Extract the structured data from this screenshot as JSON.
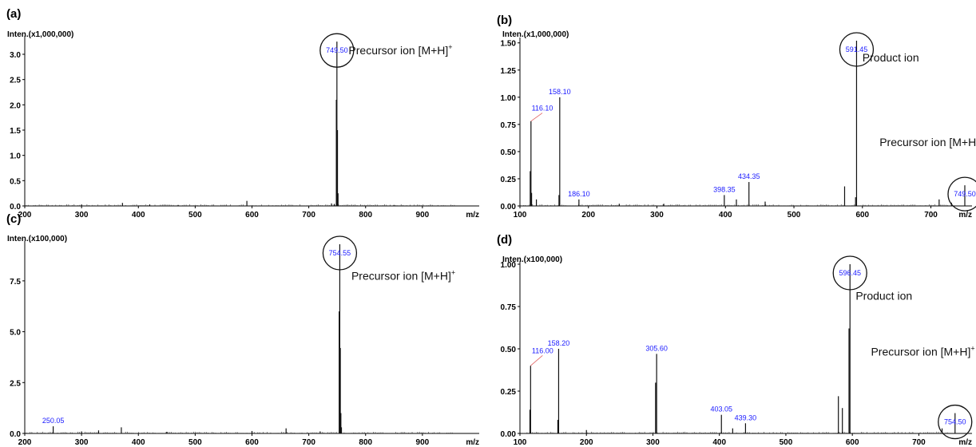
{
  "chart_data": [
    {
      "type": "spectrum",
      "panel": "(a)",
      "ylabel": "Inten.(x1,000,000)",
      "xlabel": "m/z",
      "xlim": [
        200,
        1000
      ],
      "ylim": [
        0,
        3.3
      ],
      "xticks": [
        200,
        300,
        400,
        500,
        600,
        700,
        800,
        900
      ],
      "yticks": [
        "0.0",
        "0.5",
        "1.0",
        "1.5",
        "2.0",
        "2.5",
        "3.0"
      ],
      "ytick_values": [
        0,
        0.5,
        1.0,
        1.5,
        2.0,
        2.5,
        3.0
      ],
      "peaks": [
        {
          "x": 749.5,
          "y": 3.25,
          "label": "749.50",
          "circle": true
        },
        {
          "x": 748.5,
          "y": 2.1
        },
        {
          "x": 750.5,
          "y": 1.5
        },
        {
          "x": 751.5,
          "y": 0.25
        },
        {
          "x": 740.0,
          "y": 0.05
        },
        {
          "x": 745.0,
          "y": 0.04
        },
        {
          "x": 591.0,
          "y": 0.1
        },
        {
          "x": 372.0,
          "y": 0.06
        },
        {
          "x": 300.0,
          "y": 0.03
        },
        {
          "x": 420.0,
          "y": 0.03
        },
        {
          "x": 470.0,
          "y": 0.02
        },
        {
          "x": 850.0,
          "y": 0.02
        }
      ],
      "annotations": [
        {
          "text": "Precursor ion [M+H]",
          "sup": "+",
          "x": 770,
          "y": 3.0
        }
      ]
    },
    {
      "type": "spectrum",
      "panel": "(b)",
      "ylabel": "Inten.(x1,000,000)",
      "xlabel": "m/z",
      "xlim": [
        100,
        760
      ],
      "ylim": [
        0,
        1.52
      ],
      "xticks": [
        100,
        200,
        300,
        400,
        500,
        600,
        700
      ],
      "yticks": [
        "0.00",
        "0.25",
        "0.50",
        "0.75",
        "1.00",
        "1.25",
        "1.50"
      ],
      "ytick_values": [
        0,
        0.25,
        0.5,
        0.75,
        1.0,
        1.25,
        1.5
      ],
      "peaks": [
        {
          "x": 591.45,
          "y": 1.52,
          "label": "591.45",
          "circle": true
        },
        {
          "x": 158.1,
          "y": 1.0,
          "label": "158.10"
        },
        {
          "x": 116.1,
          "y": 0.78,
          "label": "116.10",
          "label_x": 121,
          "label_y": 0.87,
          "leader": true
        },
        {
          "x": 434.35,
          "y": 0.22,
          "label": "434.35"
        },
        {
          "x": 398.35,
          "y": 0.1,
          "label": "398.35"
        },
        {
          "x": 186.1,
          "y": 0.06,
          "label": "186.10"
        },
        {
          "x": 749.5,
          "y": 0.19,
          "label": "749.50",
          "circle": true
        },
        {
          "x": 574.0,
          "y": 0.18
        },
        {
          "x": 115.0,
          "y": 0.32
        },
        {
          "x": 117.0,
          "y": 0.12
        },
        {
          "x": 157.0,
          "y": 0.1
        },
        {
          "x": 124.0,
          "y": 0.06
        },
        {
          "x": 416.0,
          "y": 0.06
        },
        {
          "x": 458.0,
          "y": 0.04
        },
        {
          "x": 712.0,
          "y": 0.06
        },
        {
          "x": 590.0,
          "y": 0.08
        },
        {
          "x": 730.0,
          "y": 0.03
        },
        {
          "x": 245.0,
          "y": 0.02
        },
        {
          "x": 310.0,
          "y": 0.02
        }
      ],
      "annotations": [
        {
          "text": "Product ion",
          "x": 600,
          "y": 1.33
        },
        {
          "text": "Precursor ion [M+H]",
          "sup": "+",
          "x": 625,
          "y": 0.55
        }
      ]
    },
    {
      "type": "spectrum",
      "panel": "(c)",
      "ylabel": "Inten.(x100,000)",
      "xlabel": "m/z",
      "xlim": [
        200,
        1000
      ],
      "ylim": [
        0,
        9.3
      ],
      "xticks": [
        200,
        300,
        400,
        500,
        600,
        700,
        800,
        900
      ],
      "yticks": [
        "0.0",
        "2.5",
        "5.0",
        "7.5"
      ],
      "ytick_values": [
        0,
        2.5,
        5.0,
        7.5
      ],
      "peaks": [
        {
          "x": 754.55,
          "y": 9.3,
          "label": "754.55",
          "circle": true
        },
        {
          "x": 753.5,
          "y": 6.0
        },
        {
          "x": 755.5,
          "y": 4.2
        },
        {
          "x": 756.5,
          "y": 1.0
        },
        {
          "x": 757.5,
          "y": 0.3
        },
        {
          "x": 250.05,
          "y": 0.35,
          "label": "250.05"
        },
        {
          "x": 370.0,
          "y": 0.3
        },
        {
          "x": 660.0,
          "y": 0.25
        },
        {
          "x": 300.0,
          "y": 0.1
        },
        {
          "x": 330.0,
          "y": 0.15
        },
        {
          "x": 600.0,
          "y": 0.12
        },
        {
          "x": 720.0,
          "y": 0.1
        },
        {
          "x": 450.0,
          "y": 0.08
        }
      ],
      "annotations": [
        {
          "text": "Precursor ion [M+H]",
          "sup": "+",
          "x": 775,
          "y": 7.55
        }
      ]
    },
    {
      "type": "spectrum",
      "panel": "(d)",
      "ylabel": "Inten.(x100,000)",
      "xlabel": "m/z",
      "xlim": [
        100,
        780
      ],
      "ylim": [
        0,
        1.0
      ],
      "xticks": [
        100,
        200,
        300,
        400,
        500,
        600,
        700
      ],
      "yticks": [
        "0.00",
        "0.25",
        "0.50",
        "0.75",
        "1.00"
      ],
      "ytick_values": [
        0,
        0.25,
        0.5,
        0.75,
        1.0
      ],
      "peaks": [
        {
          "x": 596.45,
          "y": 1.0,
          "label": "596.45",
          "circle": true
        },
        {
          "x": 158.2,
          "y": 0.5,
          "label": "158.20"
        },
        {
          "x": 116.0,
          "y": 0.4,
          "label": "116.00",
          "label_x": 122,
          "label_y": 0.47,
          "leader": true
        },
        {
          "x": 305.6,
          "y": 0.47,
          "label": "305.60"
        },
        {
          "x": 403.05,
          "y": 0.11,
          "label": "403.05"
        },
        {
          "x": 439.3,
          "y": 0.06,
          "label": "439.30"
        },
        {
          "x": 754.5,
          "y": 0.12,
          "label": "754.50",
          "circle": true
        },
        {
          "x": 579.0,
          "y": 0.22
        },
        {
          "x": 585.0,
          "y": 0.15
        },
        {
          "x": 595.0,
          "y": 0.62
        },
        {
          "x": 115.0,
          "y": 0.14
        },
        {
          "x": 157.0,
          "y": 0.08
        },
        {
          "x": 304.0,
          "y": 0.3
        },
        {
          "x": 420.0,
          "y": 0.03
        },
        {
          "x": 735.0,
          "y": 0.03
        },
        {
          "x": 200.0,
          "y": 0.02
        }
      ],
      "annotations": [
        {
          "text": "Product ion",
          "x": 605,
          "y": 0.79
        },
        {
          "text": "Precursor ion [M+H]",
          "sup": "+",
          "x": 628,
          "y": 0.46
        }
      ]
    }
  ]
}
